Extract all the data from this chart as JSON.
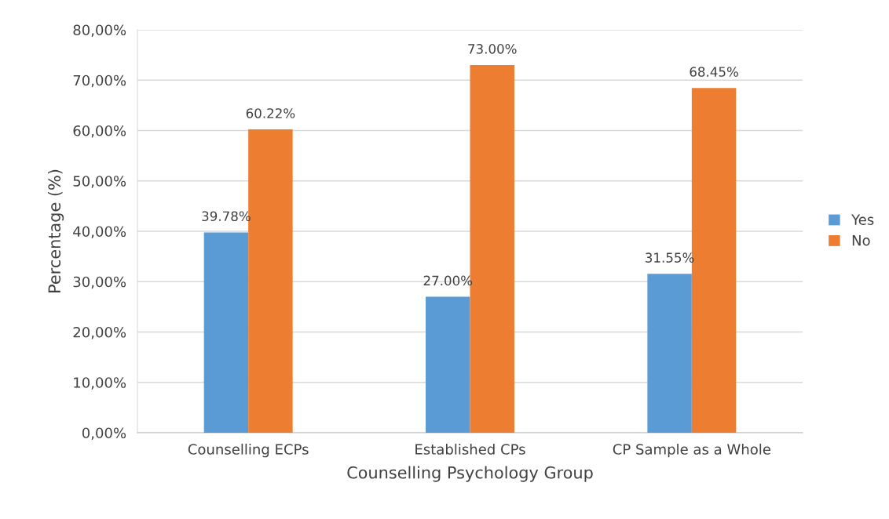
{
  "chart_data": {
    "type": "bar",
    "xlabel": "Counselling Psychology Group",
    "ylabel": "Percentage (%)",
    "categories": [
      "Counselling ECPs",
      "Established CPs",
      "CP Sample as a Whole"
    ],
    "series": [
      {
        "name": "Yes",
        "color": "#5b9bd5",
        "values": [
          39.78,
          27.0,
          31.55
        ],
        "value_labels": [
          "39.78%",
          "27.00%",
          "31.55%"
        ]
      },
      {
        "name": "No",
        "color": "#ed7d31",
        "values": [
          60.22,
          73.0,
          68.45
        ],
        "value_labels": [
          "60.22%",
          "73.00%",
          "68.45%"
        ]
      }
    ],
    "ylim": [
      0,
      80
    ],
    "yticks": [
      {
        "value": 0,
        "label": "0,00%"
      },
      {
        "value": 10,
        "label": "10,00%"
      },
      {
        "value": 20,
        "label": "20,00%"
      },
      {
        "value": 30,
        "label": "30,00%"
      },
      {
        "value": 40,
        "label": "40,00%"
      },
      {
        "value": 50,
        "label": "50,00%"
      },
      {
        "value": 60,
        "label": "60,00%"
      },
      {
        "value": 70,
        "label": "70,00%"
      },
      {
        "value": 80,
        "label": "80,00%"
      }
    ],
    "grid": "y",
    "legend": "right"
  }
}
